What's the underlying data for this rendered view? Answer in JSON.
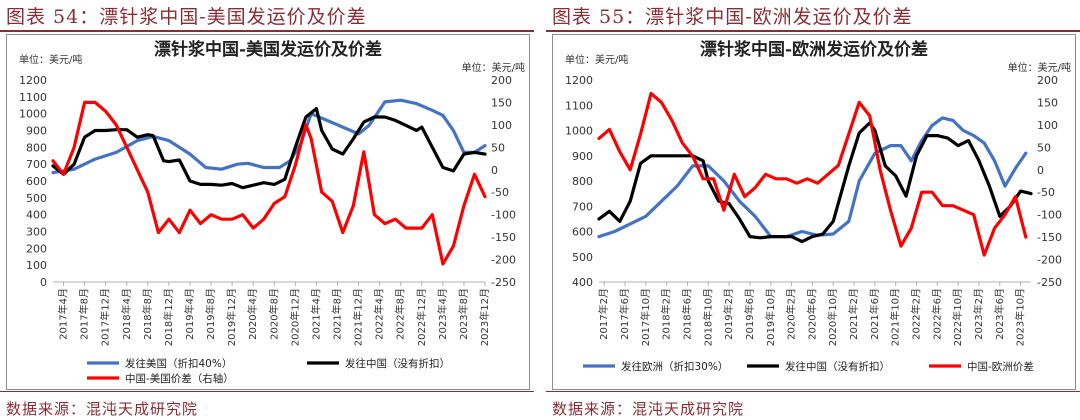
{
  "panels": [
    {
      "caption": "图表 54：漂针浆中国-美国发运价及价差",
      "source": "数据来源：混沌天成研究院",
      "chart_data": {
        "type": "line",
        "title": "漂针浆中国-美国发运价及价差",
        "left_unit": "单位：美元/吨",
        "right_unit": "单位：美元/吨",
        "ylim_left": [
          0,
          1200
        ],
        "yticks_left": [
          0,
          100,
          200,
          300,
          400,
          500,
          600,
          700,
          800,
          900,
          1000,
          1100,
          1200
        ],
        "ylim_right": [
          -250,
          200
        ],
        "yticks_right": [
          -250,
          -200,
          -150,
          -100,
          -50,
          0,
          50,
          100,
          150,
          200
        ],
        "x_start": "2017-02",
        "x_end": "2023-12",
        "x_ticks": [
          "2017年4月",
          "2017年8月",
          "2017年12月",
          "2018年4月",
          "2018年8月",
          "2018年12月",
          "2019年4月",
          "2019年8月",
          "2019年12月",
          "2020年4月",
          "2020年8月",
          "2020年12月",
          "2021年4月",
          "2021年8月",
          "2021年12月",
          "2022年4月",
          "2022年8月",
          "2022年12月",
          "2023年4月",
          "2023年8月",
          "2023年12月"
        ],
        "grid": false,
        "series": [
          {
            "name": "发往美国（折扣40%）",
            "color": "#4472c4",
            "axis": "left",
            "x": [
              "2017-02",
              "2017-06",
              "2017-10",
              "2018-02",
              "2018-06",
              "2018-09",
              "2018-12",
              "2019-04",
              "2019-07",
              "2019-10",
              "2020-01",
              "2020-03",
              "2020-06",
              "2020-09",
              "2020-11",
              "2021-01",
              "2021-03",
              "2021-06",
              "2021-09",
              "2021-12",
              "2022-02",
              "2022-05",
              "2022-08",
              "2022-11",
              "2023-02",
              "2023-04",
              "2023-06",
              "2023-08",
              "2023-10",
              "2023-12"
            ],
            "y": [
              650,
              670,
              730,
              770,
              840,
              865,
              840,
              760,
              680,
              670,
              700,
              705,
              680,
              680,
              720,
              820,
              1000,
              960,
              920,
              880,
              930,
              1070,
              1080,
              1060,
              1020,
              990,
              900,
              770,
              770,
              810
            ]
          },
          {
            "name": "发往中国（没有折扣）",
            "color": "#000000",
            "axis": "left",
            "x": [
              "2017-02",
              "2017-04",
              "2017-06",
              "2017-08",
              "2017-10",
              "2017-12",
              "2018-02",
              "2018-04",
              "2018-06",
              "2018-08",
              "2018-09",
              "2018-11",
              "2018-12",
              "2019-02",
              "2019-04",
              "2019-06",
              "2019-08",
              "2019-10",
              "2019-12",
              "2020-02",
              "2020-04",
              "2020-06",
              "2020-08",
              "2020-10",
              "2020-12",
              "2021-02",
              "2021-04",
              "2021-05",
              "2021-07",
              "2021-09",
              "2021-11",
              "2022-01",
              "2022-03",
              "2022-05",
              "2022-07",
              "2022-09",
              "2022-11",
              "2022-12",
              "2023-02",
              "2023-04",
              "2023-06",
              "2023-08",
              "2023-10",
              "2023-12"
            ],
            "y": [
              690,
              640,
              700,
              860,
              900,
              900,
              905,
              905,
              860,
              875,
              870,
              720,
              715,
              725,
              600,
              580,
              580,
              575,
              585,
              560,
              575,
              590,
              580,
              610,
              800,
              980,
              1030,
              900,
              790,
              760,
              850,
              950,
              980,
              980,
              960,
              930,
              900,
              920,
              800,
              680,
              660,
              760,
              770,
              760
            ]
          },
          {
            "name": "中国-美国价差（右轴）",
            "color": "#ff0000",
            "axis": "right",
            "x": [
              "2017-02",
              "2017-04",
              "2017-06",
              "2017-08",
              "2017-10",
              "2017-12",
              "2018-02",
              "2018-04",
              "2018-06",
              "2018-08",
              "2018-10",
              "2018-12",
              "2019-02",
              "2019-04",
              "2019-06",
              "2019-08",
              "2019-10",
              "2019-12",
              "2020-02",
              "2020-04",
              "2020-06",
              "2020-08",
              "2020-10",
              "2020-12",
              "2021-02",
              "2021-03",
              "2021-05",
              "2021-07",
              "2021-09",
              "2021-11",
              "2022-01",
              "2022-03",
              "2022-05",
              "2022-07",
              "2022-09",
              "2022-11",
              "2022-12",
              "2023-02",
              "2023-04",
              "2023-06",
              "2023-08",
              "2023-10",
              "2023-12"
            ],
            "y": [
              20,
              -10,
              50,
              150,
              150,
              130,
              100,
              50,
              0,
              -50,
              -140,
              -110,
              -140,
              -90,
              -120,
              -100,
              -110,
              -110,
              -100,
              -130,
              -110,
              -75,
              -60,
              10,
              100,
              70,
              -50,
              -70,
              -140,
              -80,
              40,
              -100,
              -120,
              -110,
              -130,
              -130,
              -130,
              -100,
              -210,
              -170,
              -80,
              -10,
              -60
            ]
          }
        ]
      }
    },
    {
      "caption": "图表 55：漂针浆中国-欧洲发运价及价差",
      "source": "数据来源：混沌天成研究院",
      "chart_data": {
        "type": "line",
        "title": "漂针浆中国-欧洲发运价及价差",
        "left_unit": "单位：美元/吨",
        "right_unit": "单位：美元/吨",
        "ylim_left": [
          400,
          1200
        ],
        "yticks_left": [
          400,
          500,
          600,
          700,
          800,
          900,
          1000,
          1100,
          1200
        ],
        "ylim_right": [
          -250,
          200
        ],
        "yticks_right": [
          -250,
          -200,
          -150,
          -100,
          -50,
          0,
          50,
          100,
          150,
          200
        ],
        "x_start": "2017-01",
        "x_end": "2023-12",
        "x_ticks": [
          "2017年2月",
          "2017年6月",
          "2017年10月",
          "2018年2月",
          "2018年6月",
          "2018年10月",
          "2019年2月",
          "2019年6月",
          "2019年10月",
          "2020年2月",
          "2020年6月",
          "2020年10月",
          "2021年2月",
          "2021年6月",
          "2021年10月",
          "2022年2月",
          "2022年6月",
          "2022年10月",
          "2023年2月",
          "2023年6月",
          "2023年10月"
        ],
        "grid": false,
        "series": [
          {
            "name": "发往欧洲（折扣30%）",
            "color": "#4472c4",
            "axis": "left",
            "x": [
              "2017-01",
              "2017-04",
              "2017-07",
              "2017-10",
              "2018-01",
              "2018-04",
              "2018-07",
              "2018-10",
              "2019-01",
              "2019-04",
              "2019-07",
              "2019-10",
              "2020-01",
              "2020-04",
              "2020-07",
              "2020-10",
              "2021-01",
              "2021-03",
              "2021-06",
              "2021-09",
              "2021-11",
              "2022-01",
              "2022-03",
              "2022-05",
              "2022-07",
              "2022-09",
              "2022-11",
              "2023-01",
              "2023-03",
              "2023-05",
              "2023-07",
              "2023-09",
              "2023-11"
            ],
            "y": [
              580,
              600,
              630,
              660,
              720,
              780,
              860,
              860,
              800,
              720,
              660,
              580,
              580,
              600,
              585,
              590,
              640,
              800,
              910,
              940,
              940,
              880,
              960,
              1020,
              1050,
              1040,
              1000,
              980,
              950,
              880,
              780,
              850,
              910
            ]
          },
          {
            "name": "发往中国（没有折扣）",
            "color": "#000000",
            "axis": "left",
            "x": [
              "2017-01",
              "2017-03",
              "2017-05",
              "2017-07",
              "2017-09",
              "2017-11",
              "2018-01",
              "2018-03",
              "2018-05",
              "2018-07",
              "2018-09",
              "2018-10",
              "2018-12",
              "2019-02",
              "2019-04",
              "2019-06",
              "2019-08",
              "2019-10",
              "2019-12",
              "2020-02",
              "2020-04",
              "2020-06",
              "2020-08",
              "2020-10",
              "2021-01",
              "2021-03",
              "2021-05",
              "2021-06",
              "2021-08",
              "2021-10",
              "2021-12",
              "2022-02",
              "2022-04",
              "2022-06",
              "2022-08",
              "2022-10",
              "2022-12",
              "2023-02",
              "2023-04",
              "2023-06",
              "2023-08",
              "2023-10",
              "2023-12"
            ],
            "y": [
              650,
              680,
              640,
              720,
              870,
              900,
              900,
              900,
              900,
              900,
              880,
              800,
              720,
              710,
              650,
              580,
              575,
              580,
              580,
              580,
              560,
              580,
              590,
              640,
              860,
              990,
              1030,
              1000,
              860,
              820,
              740,
              900,
              980,
              980,
              970,
              940,
              960,
              880,
              780,
              660,
              700,
              760,
              750
            ]
          },
          {
            "name": "中国-欧洲价差",
            "color": "#ff0000",
            "axis": "right",
            "x": [
              "2017-01",
              "2017-03",
              "2017-05",
              "2017-07",
              "2017-09",
              "2017-11",
              "2018-01",
              "2018-03",
              "2018-05",
              "2018-07",
              "2018-09",
              "2018-11",
              "2019-01",
              "2019-03",
              "2019-05",
              "2019-07",
              "2019-09",
              "2019-11",
              "2020-01",
              "2020-03",
              "2020-05",
              "2020-07",
              "2020-09",
              "2020-11",
              "2021-01",
              "2021-03",
              "2021-05",
              "2021-07",
              "2021-09",
              "2021-11",
              "2022-01",
              "2022-03",
              "2022-05",
              "2022-07",
              "2022-09",
              "2022-11",
              "2023-01",
              "2023-03",
              "2023-05",
              "2023-07",
              "2023-09",
              "2023-11"
            ],
            "y": [
              70,
              90,
              40,
              0,
              80,
              170,
              150,
              110,
              60,
              30,
              -20,
              -20,
              -90,
              -10,
              -60,
              -40,
              -10,
              -20,
              -20,
              -30,
              -20,
              -30,
              -10,
              10,
              80,
              150,
              120,
              0,
              -90,
              -170,
              -130,
              -50,
              -50,
              -80,
              -80,
              -90,
              -100,
              -190,
              -130,
              -100,
              -60,
              -150
            ]
          }
        ]
      }
    }
  ]
}
